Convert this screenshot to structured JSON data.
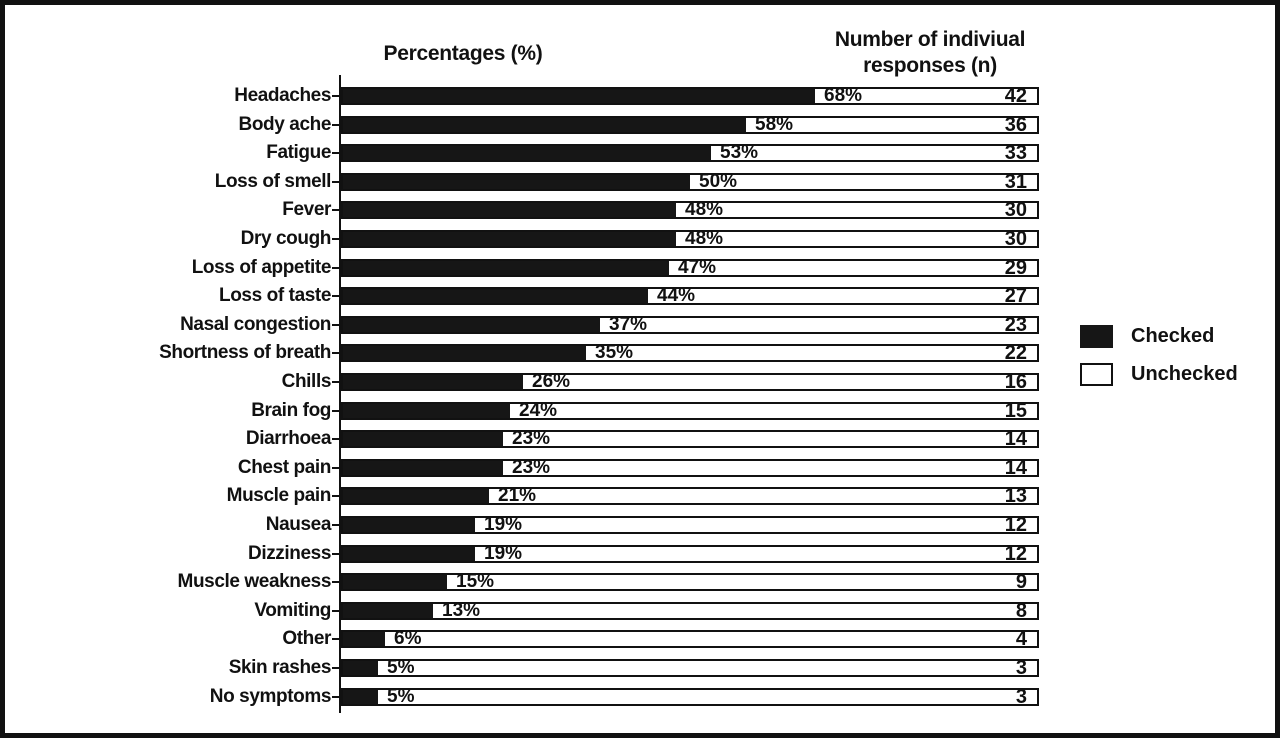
{
  "chart": {
    "left_header": "Percentages (%)",
    "right_header_line1": "Number of indiviual",
    "right_header_line2": "responses (n)",
    "legend": [
      {
        "label": "Checked",
        "swatch": "checked-black"
      },
      {
        "label": "Unchecked",
        "swatch": "unchecked-white"
      }
    ],
    "colors": {
      "checked": "#161616",
      "unchecked": "#ffffff",
      "frame": "#111111",
      "background": "#ffffff"
    }
  },
  "chart_data": {
    "type": "bar",
    "orientation": "horizontal",
    "title": "",
    "xlabel": "Percentages (%)",
    "ylabel": "",
    "xlim": [
      0,
      100
    ],
    "grid": false,
    "legend_position": "right",
    "value_suffix": "%",
    "categories": [
      "Headaches",
      "Body ache",
      "Fatigue",
      "Loss of smell",
      "Fever",
      "Dry cough",
      "Loss of appetite",
      "Loss of taste",
      "Nasal congestion",
      "Shortness of breath",
      "Chills",
      "Brain fog",
      "Diarrhoea",
      "Chest pain",
      "Muscle pain",
      "Nausea",
      "Dizziness",
      "Muscle weakness",
      "Vomiting",
      "Other",
      "Skin rashes",
      "No symptoms"
    ],
    "series": [
      {
        "name": "Checked (%)",
        "values": [
          68,
          58,
          53,
          50,
          48,
          48,
          47,
          44,
          37,
          35,
          26,
          24,
          23,
          23,
          21,
          19,
          19,
          15,
          13,
          6,
          5,
          5
        ]
      },
      {
        "name": "Number of indiviual responses (n)",
        "values": [
          42,
          36,
          33,
          31,
          30,
          30,
          29,
          27,
          23,
          22,
          16,
          15,
          14,
          14,
          13,
          12,
          12,
          9,
          8,
          4,
          3,
          3
        ]
      }
    ]
  }
}
